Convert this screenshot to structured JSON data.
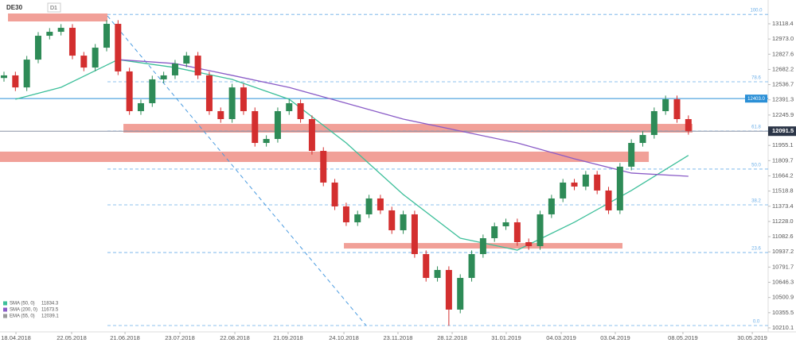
{
  "chart_data": {
    "type": "candlestick",
    "symbol": "DE30",
    "interval": "D1",
    "up_color": "#2e8b57",
    "down_color": "#d32f2f",
    "x": [
      0,
      1,
      2,
      3,
      4,
      5,
      6,
      7,
      8,
      9,
      10,
      11,
      12,
      13,
      14,
      15,
      16,
      17,
      18,
      19,
      20,
      21,
      22,
      23,
      24,
      25,
      26,
      27,
      28,
      29,
      30,
      31,
      32,
      33,
      34,
      35,
      36,
      37,
      38,
      39,
      40,
      41,
      42,
      43,
      44,
      45,
      46,
      47,
      48,
      49,
      50,
      51,
      52,
      53,
      54,
      55,
      56,
      57,
      58,
      59,
      60
    ],
    "open": [
      12600,
      12625,
      12510,
      12776,
      13004,
      13042,
      13080,
      12814,
      12700,
      12890,
      13118,
      12663,
      12283,
      12359,
      12587,
      12625,
      12738,
      12814,
      12625,
      12283,
      12207,
      12510,
      12283,
      11979,
      12017,
      12283,
      12359,
      12207,
      11903,
      11600,
      11372,
      11220,
      11296,
      11448,
      11334,
      11144,
      11296,
      10916,
      10688,
      10764,
      10385,
      10688,
      10916,
      11068,
      11182,
      11220,
      11030,
      10992,
      11296,
      11448,
      11600,
      11562,
      11676,
      11524,
      11334,
      11752,
      11979,
      12055,
      12283,
      12397,
      12207
    ],
    "high": [
      12660,
      12660,
      12811,
      13039,
      13077,
      13115,
      13115,
      12849,
      12925,
      13153,
      13153,
      12698,
      12394,
      12622,
      12660,
      12773,
      12849,
      12849,
      12660,
      12318,
      12545,
      12545,
      12318,
      12052,
      12318,
      12394,
      12394,
      12242,
      11938,
      11635,
      11407,
      11331,
      11483,
      11483,
      11369,
      11331,
      11331,
      10951,
      10799,
      10799,
      10723,
      10951,
      11103,
      11217,
      11255,
      11255,
      11065,
      11331,
      11483,
      11635,
      11635,
      11711,
      11711,
      11559,
      11787,
      12014,
      12090,
      12318,
      12432,
      12432,
      12242
    ],
    "low": [
      12565,
      12475,
      12475,
      12741,
      12969,
      13007,
      12779,
      12665,
      12665,
      12855,
      12628,
      12248,
      12248,
      12324,
      12552,
      12590,
      12703,
      12590,
      12248,
      12172,
      12172,
      12248,
      11944,
      11944,
      11982,
      12248,
      12172,
      11868,
      11565,
      11337,
      11185,
      11185,
      11261,
      11299,
      11109,
      11109,
      10881,
      10653,
      10653,
      10230,
      10350,
      10653,
      10881,
      11033,
      11147,
      10995,
      10957,
      10957,
      11261,
      11413,
      11527,
      11527,
      11489,
      11299,
      11299,
      11717,
      11944,
      12020,
      12248,
      12172,
      12058
    ],
    "close": [
      12625,
      12510,
      12776,
      13004,
      13042,
      13080,
      12814,
      12700,
      12890,
      13118,
      12663,
      12283,
      12359,
      12587,
      12625,
      12738,
      12814,
      12625,
      12283,
      12207,
      12510,
      12283,
      11979,
      12017,
      12283,
      12359,
      12207,
      11903,
      11600,
      11372,
      11220,
      11296,
      11448,
      11334,
      11144,
      11296,
      10916,
      10688,
      10764,
      10385,
      10688,
      10916,
      11068,
      11182,
      11220,
      11030,
      10992,
      11296,
      11448,
      11600,
      11562,
      11676,
      11524,
      11334,
      11752,
      11979,
      12055,
      12283,
      12397,
      12207,
      12091.5
    ],
    "series": [
      {
        "name": "SMA (50, 0)",
        "current": 11834.3,
        "color": "#3dbf9a",
        "x": [
          1,
          5,
          10,
          15,
          20,
          25,
          30,
          35,
          40,
          45,
          50,
          55,
          60
        ],
        "values": [
          12397,
          12511,
          12776,
          12700,
          12587,
          12397,
          11979,
          11486,
          11068,
          10954,
          11220,
          11524,
          11860
        ]
      },
      {
        "name": "SMA (200, 0)",
        "current": 11673.5,
        "color": "#8a5cc7",
        "x": [
          10,
          15,
          20,
          25,
          30,
          35,
          40,
          45,
          50,
          55,
          60
        ],
        "values": [
          12776,
          12738,
          12625,
          12510,
          12359,
          12207,
          12093,
          11979,
          11827,
          11691,
          11660
        ]
      },
      {
        "name": "EMA (55, 0)",
        "current": 12039.1,
        "color": "#999999"
      }
    ],
    "xlim": [
      -0.349,
      66.99
    ],
    "ylim": [
      10172,
      13308
    ],
    "yticks": [
      13118.4,
      {
        "value": 12973,
        "label": "12973.0"
      },
      12827.6,
      12682.2,
      12536.7,
      12391.3,
      12245.9,
      11955.1,
      11809.7,
      11664.2,
      11518.8,
      11373.4,
      {
        "value": 11228,
        "label": "11228.0"
      },
      11082.6,
      10937.2,
      10791.7,
      10646.3,
      10500.9,
      10355.5,
      10210.1
    ],
    "xticks": [
      {
        "value": 1.05,
        "label": "18.04.2018"
      },
      {
        "value": 5.93,
        "label": "22.05.2018"
      },
      {
        "value": 10.61,
        "label": "21.06.2018"
      },
      {
        "value": 15.42,
        "label": "23.07.2018"
      },
      {
        "value": 20.24,
        "label": "22.08.2018"
      },
      {
        "value": 24.91,
        "label": "21.09.2018"
      },
      {
        "value": 29.8,
        "label": "24.10.2018"
      },
      {
        "value": 34.54,
        "label": "23.11.2018"
      },
      {
        "value": 39.29,
        "label": "28.12.2018"
      },
      {
        "value": 44.03,
        "label": "31.01.2019"
      },
      {
        "value": 48.85,
        "label": "04.03.2019"
      },
      {
        "value": 53.59,
        "label": "03.04.2019"
      },
      {
        "value": 59.52,
        "label": "08.05.2019"
      },
      {
        "value": 65.6,
        "label": "30.05.2019"
      }
    ],
    "fib_levels": [
      {
        "value": 13208,
        "label": "100.0"
      },
      {
        "value": 12564,
        "label": "78.6"
      },
      {
        "value": 12093,
        "label": "61.8"
      },
      {
        "value": 11729,
        "label": "50.0"
      },
      {
        "value": 11387,
        "label": "38.2"
      },
      {
        "value": 10931,
        "label": "23.6"
      },
      {
        "value": 10233,
        "label": "0.0"
      }
    ],
    "fib_start": 9.07,
    "level_line": {
      "value": 12403,
      "label": "12403.0",
      "color": "#2a8fd6"
    },
    "last_price": {
      "value": 12091.5,
      "label": "12091.5"
    },
    "zones": [
      {
        "x": [
          0.35,
          9.07
        ],
        "y": [
          13141,
          13217
        ]
      },
      {
        "x": [
          10.47,
          60.36
        ],
        "y": [
          12078,
          12161
        ]
      },
      {
        "x": [
          -0.349,
          56.53
        ],
        "y": [
          11797,
          11896
        ]
      },
      {
        "x": [
          29.8,
          54.22
        ],
        "y": [
          10969,
          11022
        ]
      }
    ],
    "trendline": {
      "x": [
        9.07,
        31.75
      ],
      "y": [
        13194,
        10233
      ]
    }
  }
}
